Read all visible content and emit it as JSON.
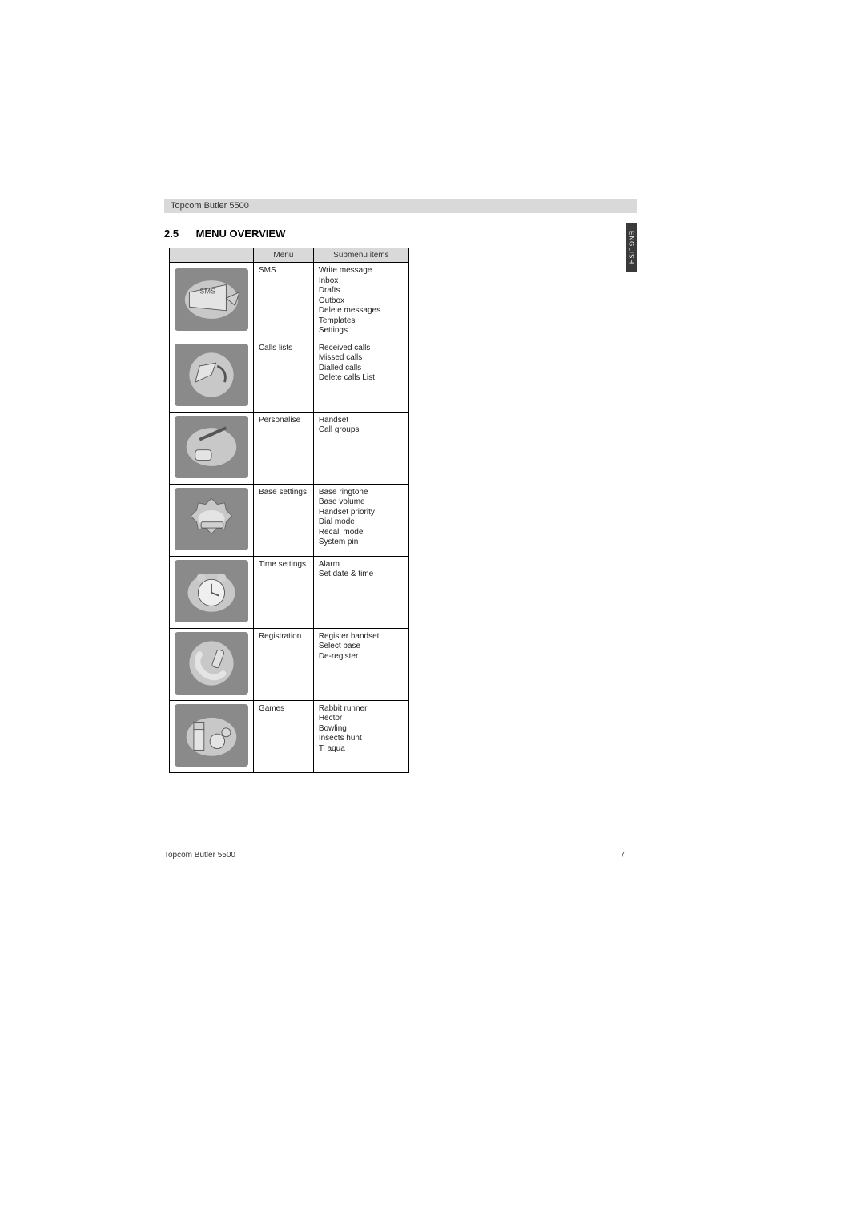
{
  "header": {
    "title": "Topcom Butler 5500"
  },
  "section": {
    "number": "2.5",
    "title": "MENU OVERVIEW"
  },
  "side_tab": {
    "label": "ENGLISH"
  },
  "table": {
    "headers": {
      "icon": "",
      "menu": "Menu",
      "submenu": "Submenu items"
    },
    "rows": [
      {
        "icon": "sms-icon",
        "menu": "SMS",
        "sub": "Write message\nInbox\nDrafts\nOutbox\nDelete messages\nTemplates\nSettings"
      },
      {
        "icon": "calls-icon",
        "menu": "Calls lists",
        "sub": "Received calls\nMissed calls\nDialled calls\nDelete calls List"
      },
      {
        "icon": "personalise-icon",
        "menu": "Personalise",
        "sub": "Handset\nCall groups"
      },
      {
        "icon": "base-settings-icon",
        "menu": "Base settings",
        "sub": "Base ringtone\nBase volume\nHandset priority\nDial mode\nRecall mode\nSystem pin"
      },
      {
        "icon": "time-settings-icon",
        "menu": "Time settings",
        "sub": "Alarm\nSet date & time"
      },
      {
        "icon": "registration-icon",
        "menu": "Registration",
        "sub": "Register handset\nSelect base\nDe-register"
      },
      {
        "icon": "games-icon",
        "menu": "Games",
        "sub": "Rabbit runner\nHector\nBowling\nInsects hunt\nTi aqua"
      }
    ]
  },
  "footer": {
    "text": "Topcom Butler 5500",
    "page": "7"
  },
  "style": {
    "page_bg": "#ffffff",
    "header_bg": "#d9d9d9",
    "table_border": "#000000",
    "icon_bg": "#8a8a8a",
    "text_color": "#222222",
    "side_tab_bg": "#3a3a3a"
  }
}
